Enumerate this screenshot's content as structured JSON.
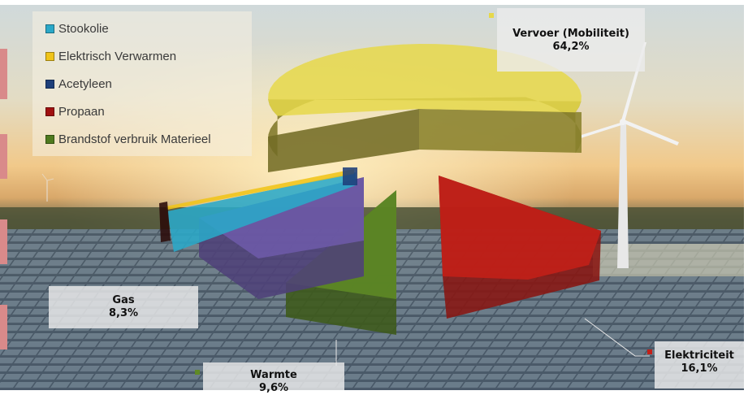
{
  "chart_data": {
    "type": "pie",
    "style": "3d-exploded",
    "categories": [
      "Vervoer (Mobiliteit)",
      "Elektriciteit",
      "Warmte",
      "Gas",
      "Brandstof verbruik Materieel",
      "Propaan",
      "Acetyleen",
      "Elektrisch Verwarmen",
      "Stookolie"
    ],
    "values": [
      64.2,
      16.1,
      9.6,
      8.3,
      null,
      null,
      null,
      null,
      null
    ],
    "data_labels": [
      {
        "name": "Vervoer (Mobiliteit)",
        "value": "64,2%"
      },
      {
        "name": "Elektriciteit",
        "value": "16,1%"
      },
      {
        "name": "Warmte",
        "value": "9,6%"
      },
      {
        "name": "Gas",
        "value": "8,3%"
      }
    ],
    "legend": {
      "placement": "top-left",
      "entries": [
        {
          "label": "Stookolie",
          "color": "#2aa8c8"
        },
        {
          "label": "Elektrisch Verwarmen",
          "color": "#f0c419"
        },
        {
          "label": "Acetyleen",
          "color": "#1e3f7a"
        },
        {
          "label": "Propaan",
          "color": "#a01010"
        },
        {
          "label": "Brandstof verbruik Materieel",
          "color": "#4f7a1e"
        }
      ]
    },
    "colors": {
      "Vervoer (Mobiliteit)": "#e6d84a",
      "Elektriciteit": "#c42018",
      "Warmte": "#5f8a26",
      "Gas": "#6d5aa8",
      "Stookolie": "#2aa8c8",
      "Elektrisch Verwarmen": "#f0c419",
      "Acetyleen": "#1e3f7a",
      "Propaan": "#a01010",
      "Brandstof verbruik Materieel": "#4f7a1e"
    }
  }
}
